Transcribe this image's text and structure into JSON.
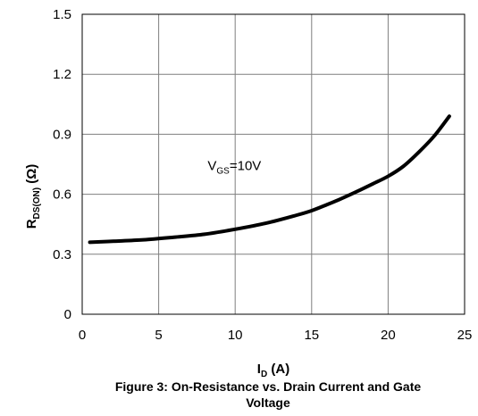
{
  "chart_data": {
    "type": "line",
    "xlabel": {
      "main": "I",
      "sub": "D",
      "unit": " (A)"
    },
    "ylabel": {
      "main": "R",
      "sub": "DS(ON)",
      "unit": " (Ω)"
    },
    "xlim": [
      0,
      25
    ],
    "ylim": [
      0,
      1.5
    ],
    "xticks": [
      "0",
      "5",
      "10",
      "15",
      "20",
      "25"
    ],
    "yticks": [
      "0",
      "0.3",
      "0.6",
      "0.9",
      "1.2",
      "1.5"
    ],
    "grid": true,
    "series": [
      {
        "name": "VGS=10V",
        "x": [
          0.5,
          2,
          4,
          6,
          8,
          10,
          12,
          14,
          15,
          16,
          17,
          18,
          19,
          20,
          21,
          22,
          23,
          24
        ],
        "y": [
          0.36,
          0.365,
          0.372,
          0.385,
          0.4,
          0.425,
          0.455,
          0.495,
          0.518,
          0.548,
          0.58,
          0.615,
          0.652,
          0.69,
          0.74,
          0.81,
          0.89,
          0.99
        ]
      }
    ],
    "annotations": [
      {
        "main": "V",
        "sub": "GS",
        "rest": "=10V",
        "x": 8.2,
        "y": 0.72
      }
    ]
  },
  "caption": {
    "line1": "Figure 3: On-Resistance vs. Drain Current and Gate",
    "line2": "Voltage"
  }
}
